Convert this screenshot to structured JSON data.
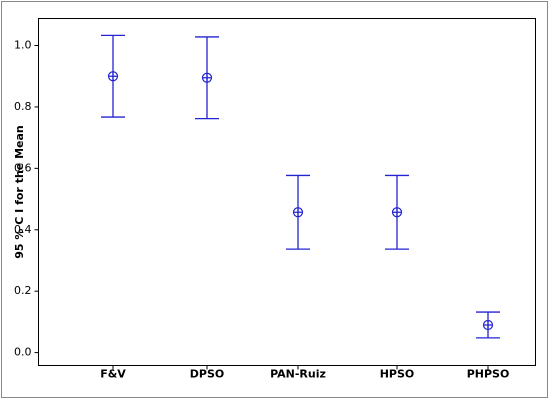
{
  "chart_data": {
    "type": "interval",
    "y_label": "95 % C I for the Mean",
    "categories": [
      "F&V",
      "DPSO",
      "PAN-Ruiz",
      "HPSO",
      "PHPSO"
    ],
    "values": [
      0.9,
      0.895,
      0.457,
      0.457,
      0.09
    ],
    "errors": [
      0.133,
      0.133,
      0.12,
      0.12,
      0.042
    ],
    "color": "#2323d2",
    "ylim": [
      -0.042,
      1.088
    ],
    "yticks": [
      {
        "value": 0,
        "label": "0.0"
      },
      0.2,
      0.4,
      0.6,
      0.8,
      {
        "value": 1,
        "label": "1.0"
      }
    ]
  }
}
